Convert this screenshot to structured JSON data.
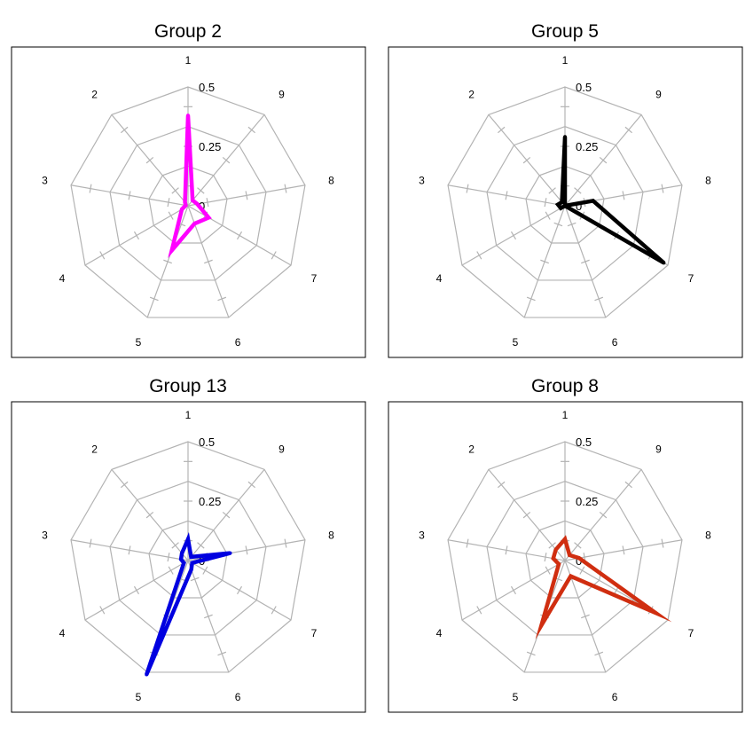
{
  "chart_data": [
    {
      "type": "radar",
      "title": "Group 2",
      "axes": [
        "1",
        "2",
        "3",
        "4",
        "5",
        "6",
        "7",
        "8",
        "9"
      ],
      "ring_labels": [
        "0",
        "0.25",
        "0.5"
      ],
      "rlim": [
        0,
        0.5
      ],
      "color": "#ff00ff",
      "values": [
        0.38,
        0.02,
        0.01,
        0.03,
        0.2,
        0.08,
        0.1,
        0.04,
        0.03
      ]
    },
    {
      "type": "radar",
      "title": "Group 5",
      "axes": [
        "1",
        "2",
        "3",
        "4",
        "5",
        "6",
        "7",
        "8",
        "9"
      ],
      "ring_labels": [
        "0",
        "0.25",
        "0.5"
      ],
      "rlim": [
        0,
        0.5
      ],
      "color": "#000000",
      "values": [
        0.29,
        0.02,
        0.03,
        0.02,
        0.0,
        0.0,
        0.48,
        0.12,
        0.0
      ]
    },
    {
      "type": "radar",
      "title": "Group 13",
      "axes": [
        "1",
        "2",
        "3",
        "4",
        "5",
        "6",
        "7",
        "8",
        "9"
      ],
      "ring_labels": [
        "0",
        "0.25",
        "0.5"
      ],
      "rlim": [
        0,
        0.5
      ],
      "color": "#0000e0",
      "values": [
        0.09,
        0.04,
        0.03,
        0.02,
        0.51,
        0.04,
        0.02,
        0.18,
        0.02
      ]
    },
    {
      "type": "radar",
      "title": "Group 8",
      "axes": [
        "1",
        "2",
        "3",
        "4",
        "5",
        "6",
        "7",
        "8",
        "9"
      ],
      "ring_labels": [
        "0",
        "0.25",
        "0.5"
      ],
      "rlim": [
        0,
        0.5
      ],
      "color": "#d02e10",
      "values": [
        0.09,
        0.06,
        0.05,
        0.03,
        0.29,
        0.07,
        0.44,
        0.06,
        0.03
      ]
    }
  ]
}
